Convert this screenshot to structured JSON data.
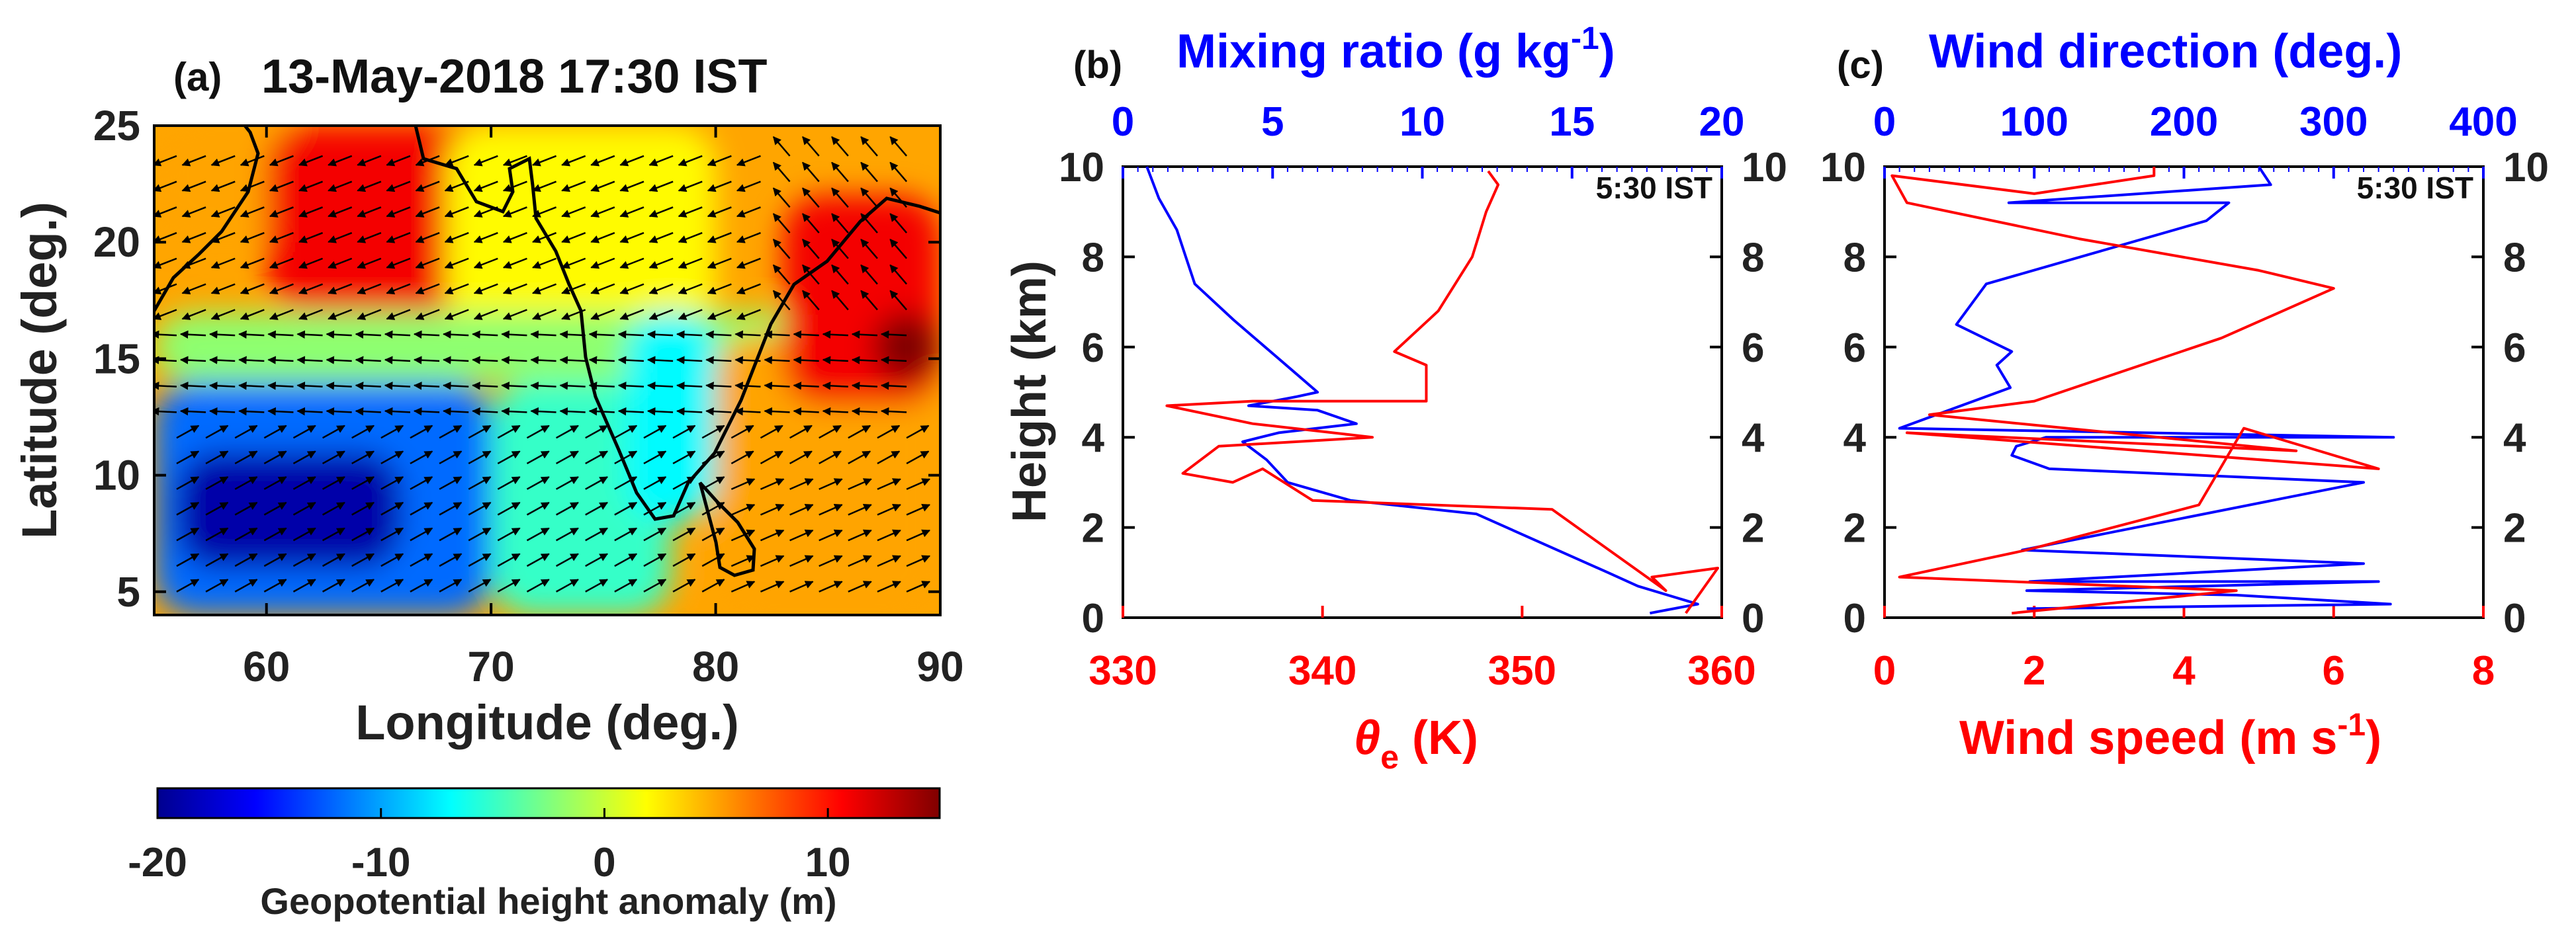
{
  "colors": {
    "red": "#ff0000",
    "blue": "#0000ff",
    "black": "#111111"
  },
  "chart_data": [
    {
      "type": "heatmap",
      "panel_label": "(a)",
      "title": "13-May-2018 17:30 IST",
      "xlabel": "Longitude (deg.)",
      "ylabel": "Latitude (deg.)",
      "xlim": [
        55,
        90
      ],
      "ylim": [
        4,
        25
      ],
      "xticks": [
        60,
        70,
        80,
        90
      ],
      "yticks": [
        5,
        10,
        15,
        20,
        25
      ],
      "overlays": [
        "coastline",
        "wind vectors"
      ],
      "colorbar": {
        "label": "Geopotential height anomaly (m)",
        "range": [
          -20,
          15
        ],
        "ticks": [
          -20,
          -10,
          0,
          10
        ],
        "colormap": "jet"
      },
      "regions": [
        {
          "lon": [
            55,
            68
          ],
          "lat": [
            20,
            25
          ],
          "anomaly": 5
        },
        {
          "lon": [
            60,
            72
          ],
          "lat": [
            17,
            25
          ],
          "anomaly": 11
        },
        {
          "lon": [
            68,
            80
          ],
          "lat": [
            16,
            25
          ],
          "anomaly": 2
        },
        {
          "lon": [
            55,
            90
          ],
          "lat": [
            14,
            17
          ],
          "anomaly": -2
        },
        {
          "lon": [
            55,
            70
          ],
          "lat": [
            4,
            14
          ],
          "anomaly": -12
        },
        {
          "lon": [
            56,
            66
          ],
          "lat": [
            6,
            11
          ],
          "anomaly": -19
        },
        {
          "lon": [
            70,
            78
          ],
          "lat": [
            4,
            14
          ],
          "anomaly": -5
        },
        {
          "lon": [
            76,
            80
          ],
          "lat": [
            8,
            17
          ],
          "anomaly": -7
        },
        {
          "lon": [
            80,
            90
          ],
          "lat": [
            4,
            16
          ],
          "anomaly": 5
        },
        {
          "lon": [
            83,
            90
          ],
          "lat": [
            13,
            22
          ],
          "anomaly": 11
        },
        {
          "lon": [
            87,
            90
          ],
          "lat": [
            14,
            17
          ],
          "anomaly": 15
        }
      ]
    },
    {
      "type": "line",
      "panel_label": "(b)",
      "annotation": "5:30 IST",
      "ylabel": "Height (km)",
      "ylim": [
        0,
        10
      ],
      "yticks": [
        0,
        2,
        4,
        6,
        8,
        10
      ],
      "top_axis": {
        "label_main": "Mixing ratio (g kg",
        "label_exp": "-1",
        "label_close": ")",
        "range": [
          0,
          20
        ],
        "ticks": [
          0,
          5,
          10,
          15,
          20
        ],
        "color": "blue"
      },
      "bottom_axis": {
        "label_main": "θ",
        "label_sub": "e",
        "label_rest": " (K)",
        "range": [
          330,
          360
        ],
        "ticks": [
          330,
          340,
          350,
          360
        ],
        "color": "red"
      },
      "series": [
        {
          "name": "Mixing ratio",
          "axis": "top",
          "color": "blue",
          "x": [
            17.6,
            19.2,
            17.2,
            16.2,
            11.8,
            7.6,
            5.5,
            4.8,
            4.0,
            5.2,
            7.8,
            6.5,
            4.2,
            5.8,
            6.5,
            5.8,
            5.1,
            3.7,
            2.4,
            2.1,
            1.8,
            1.2,
            0.8
          ],
          "y": [
            0.1,
            0.3,
            0.7,
            1.0,
            2.3,
            2.6,
            3.0,
            3.5,
            3.9,
            4.1,
            4.3,
            4.6,
            4.7,
            4.9,
            5.0,
            5.4,
            5.8,
            6.6,
            7.4,
            8.0,
            8.6,
            9.3,
            10.0
          ]
        },
        {
          "name": "θe",
          "axis": "bottom",
          "color": "red",
          "x": [
            358.2,
            359.8,
            356.5,
            357.2,
            351.5,
            339.5,
            337.0,
            335.5,
            333.0,
            334.8,
            342.5,
            336.5,
            332.2,
            336.5,
            345.2,
            345.2,
            343.6,
            345.8,
            347.5,
            348.2,
            348.8,
            348.3
          ],
          "y": [
            0.1,
            1.1,
            0.9,
            0.6,
            2.4,
            2.6,
            3.3,
            3.0,
            3.2,
            3.8,
            4.0,
            4.3,
            4.7,
            4.8,
            4.8,
            5.6,
            5.9,
            6.8,
            8.0,
            9.0,
            9.6,
            9.9
          ]
        }
      ]
    },
    {
      "type": "line",
      "panel_label": "(c)",
      "annotation": "5:30 IST",
      "ylim": [
        0,
        10
      ],
      "yticks": [
        0,
        2,
        4,
        6,
        8,
        10
      ],
      "top_axis": {
        "label_main": "Wind direction (deg.)",
        "range": [
          0,
          400
        ],
        "ticks": [
          0,
          100,
          200,
          300,
          400
        ],
        "color": "blue"
      },
      "bottom_axis": {
        "label_main": "Wind speed (m s",
        "label_exp": "-1",
        "label_close": ")",
        "range": [
          0,
          8
        ],
        "ticks": [
          0,
          2,
          4,
          6,
          8
        ],
        "color": "red"
      },
      "series": [
        {
          "name": "Wind direction",
          "axis": "top",
          "color": "blue",
          "x": [
            95,
            338,
            235,
            95,
            330,
            97,
            320,
            92,
            320,
            110,
            85,
            88,
            108,
            340,
            10,
            84,
            75,
            85,
            48,
            68,
            215,
            230,
            83,
            258,
            250
          ],
          "y": [
            0.2,
            0.3,
            0.5,
            0.6,
            0.8,
            0.8,
            1.2,
            1.5,
            3.0,
            3.3,
            3.6,
            3.8,
            4.0,
            4.0,
            4.2,
            5.1,
            5.6,
            5.9,
            6.5,
            7.4,
            8.8,
            9.2,
            9.2,
            9.6,
            10.0
          ]
        },
        {
          "name": "Wind speed",
          "axis": "bottom",
          "color": "red",
          "x": [
            1.7,
            4.7,
            0.2,
            1.9,
            4.2,
            4.8,
            6.6,
            0.3,
            5.5,
            0.6,
            2.0,
            4.5,
            6.0,
            5.0,
            2.6,
            0.3,
            0.1,
            2.0,
            3.6,
            3.6
          ],
          "y": [
            0.1,
            0.6,
            0.9,
            1.5,
            2.5,
            4.2,
            3.3,
            4.1,
            3.7,
            4.5,
            4.8,
            6.2,
            7.3,
            7.7,
            8.4,
            9.2,
            9.8,
            9.4,
            9.8,
            10.0
          ]
        }
      ]
    }
  ]
}
